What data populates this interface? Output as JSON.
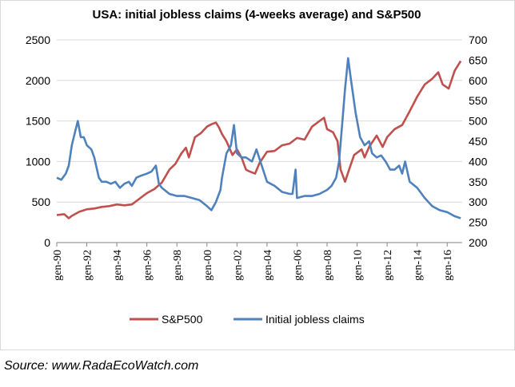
{
  "chart_data": {
    "type": "line",
    "title": "USA: initial jobless claims (4-weeks average) and S&P500",
    "x_tick_labels": [
      "gen-90",
      "gen-92",
      "gen-94",
      "gen-96",
      "gen-98",
      "gen-00",
      "gen-02",
      "gen-04",
      "gen-06",
      "gen-08",
      "gen-10",
      "gen-12",
      "gen-14",
      "gen-16"
    ],
    "x_tick_years": [
      1990,
      1992,
      1994,
      1996,
      1998,
      2000,
      2002,
      2004,
      2006,
      2008,
      2010,
      2012,
      2014,
      2016
    ],
    "xlim": [
      1990,
      2017
    ],
    "y_left": {
      "min": 0,
      "max": 2500,
      "ticks": [
        0,
        500,
        1000,
        1500,
        2000,
        2500
      ]
    },
    "y_right": {
      "min": 200,
      "max": 700,
      "ticks": [
        200,
        250,
        300,
        350,
        400,
        450,
        500,
        550,
        600,
        650,
        700
      ]
    },
    "grid": "horizontal",
    "legend_position": "bottom",
    "series": [
      {
        "name": "S&P500",
        "axis": "left",
        "color": "#c0504d",
        "x": [
          1990.0,
          1990.5,
          1990.8,
          1991.0,
          1991.5,
          1992.0,
          1992.5,
          1993.0,
          1993.5,
          1994.0,
          1994.5,
          1995.0,
          1995.5,
          1996.0,
          1996.5,
          1997.0,
          1997.5,
          1997.9,
          1998.3,
          1998.6,
          1998.8,
          1999.2,
          1999.6,
          2000.0,
          2000.3,
          2000.6,
          2000.8,
          2001.0,
          2001.3,
          2001.7,
          2002.0,
          2002.3,
          2002.6,
          2002.8,
          2003.2,
          2003.5,
          2004.0,
          2004.5,
          2005.0,
          2005.5,
          2006.0,
          2006.5,
          2007.0,
          2007.5,
          2007.8,
          2008.0,
          2008.4,
          2008.7,
          2008.9,
          2009.2,
          2009.5,
          2009.8,
          2010.3,
          2010.5,
          2010.8,
          2011.3,
          2011.7,
          2012.0,
          2012.5,
          2013.0,
          2013.5,
          2014.0,
          2014.5,
          2015.0,
          2015.4,
          2015.7,
          2016.1,
          2016.5,
          2016.9
        ],
        "values": [
          340,
          350,
          300,
          330,
          380,
          410,
          420,
          440,
          450,
          470,
          460,
          470,
          540,
          610,
          660,
          740,
          900,
          970,
          1100,
          1170,
          1050,
          1300,
          1350,
          1430,
          1460,
          1480,
          1420,
          1340,
          1250,
          1080,
          1150,
          1050,
          900,
          880,
          850,
          980,
          1120,
          1130,
          1200,
          1220,
          1290,
          1270,
          1430,
          1500,
          1540,
          1400,
          1360,
          1250,
          900,
          750,
          920,
          1080,
          1150,
          1050,
          1180,
          1320,
          1180,
          1300,
          1400,
          1450,
          1620,
          1800,
          1950,
          2020,
          2100,
          1950,
          1900,
          2120,
          2240
        ]
      },
      {
        "name": "Initial jobless claims",
        "axis": "right",
        "color": "#4f81bd",
        "x": [
          1990.0,
          1990.3,
          1990.6,
          1990.8,
          1991.0,
          1991.2,
          1991.4,
          1991.6,
          1991.8,
          1992.0,
          1992.3,
          1992.5,
          1992.8,
          1993.0,
          1993.3,
          1993.6,
          1993.9,
          1994.2,
          1994.5,
          1994.8,
          1995.0,
          1995.3,
          1995.6,
          1996.0,
          1996.3,
          1996.6,
          1996.8,
          1997.0,
          1997.5,
          1998.0,
          1998.5,
          1999.0,
          1999.5,
          2000.0,
          2000.3,
          2000.6,
          2000.9,
          2001.0,
          2001.3,
          2001.6,
          2001.8,
          2002.0,
          2002.3,
          2002.6,
          2003.0,
          2003.3,
          2003.6,
          2004.0,
          2004.5,
          2005.0,
          2005.5,
          2005.7,
          2005.9,
          2006.0,
          2006.5,
          2007.0,
          2007.5,
          2008.0,
          2008.3,
          2008.6,
          2008.8,
          2009.0,
          2009.2,
          2009.4,
          2009.6,
          2009.9,
          2010.2,
          2010.5,
          2010.8,
          2011.0,
          2011.3,
          2011.6,
          2011.9,
          2012.2,
          2012.5,
          2012.8,
          2013.0,
          2013.2,
          2013.5,
          2014.0,
          2014.5,
          2015.0,
          2015.5,
          2016.0,
          2016.5,
          2016.9
        ],
        "values": [
          360,
          355,
          370,
          390,
          440,
          470,
          500,
          460,
          460,
          440,
          430,
          410,
          360,
          350,
          350,
          345,
          350,
          335,
          345,
          350,
          340,
          360,
          365,
          370,
          375,
          390,
          345,
          335,
          320,
          315,
          315,
          310,
          305,
          290,
          280,
          300,
          330,
          360,
          420,
          440,
          490,
          420,
          410,
          410,
          400,
          430,
          395,
          350,
          340,
          325,
          320,
          320,
          380,
          310,
          315,
          315,
          320,
          330,
          340,
          360,
          400,
          490,
          580,
          655,
          600,
          520,
          460,
          440,
          450,
          420,
          410,
          415,
          400,
          380,
          380,
          390,
          370,
          400,
          350,
          335,
          310,
          290,
          280,
          275,
          265,
          260
        ]
      }
    ]
  },
  "legend": {
    "items": [
      {
        "label": "S&P500",
        "color": "#c0504d"
      },
      {
        "label": "Initial jobless claims",
        "color": "#4f81bd"
      }
    ]
  },
  "source": "Source: www.RadaEcoWatch.com"
}
